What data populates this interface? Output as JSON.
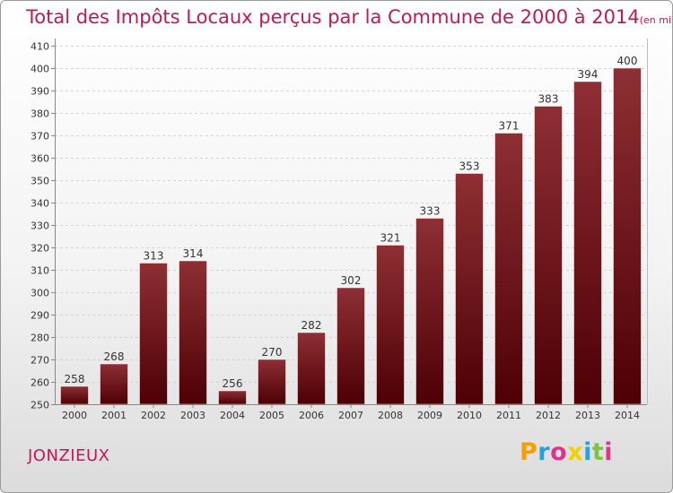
{
  "chart_data": {
    "type": "bar",
    "title": "Total des Impôts Locaux perçus par la Commune de 2000 à 2014",
    "unit_note": "(en milliers d'€)",
    "categories": [
      "2000",
      "2001",
      "2002",
      "2003",
      "2004",
      "2005",
      "2006",
      "2007",
      "2008",
      "2009",
      "2010",
      "2011",
      "2012",
      "2013",
      "2014"
    ],
    "values": [
      258,
      268,
      313,
      314,
      256,
      270,
      282,
      302,
      321,
      333,
      353,
      371,
      383,
      394,
      400
    ],
    "ylim": [
      250,
      410
    ],
    "yticks": [
      "250",
      "260",
      "270",
      "280",
      "290",
      "300",
      "310",
      "320",
      "330",
      "340",
      "350",
      "360",
      "370",
      "380",
      "390",
      "400",
      "410"
    ],
    "xlabel": "",
    "ylabel": "",
    "grid": true,
    "bar_color": "#7a1218"
  },
  "commune": "JONZIEUX",
  "logo": {
    "letters": [
      "P",
      "r",
      "o",
      "x",
      "i",
      "t",
      "i"
    ],
    "colors": [
      "#f5a000",
      "#2aa0d8",
      "#e0338c",
      "#f0d200",
      "#2aa0d8",
      "#7cc442",
      "#e0338c"
    ]
  }
}
